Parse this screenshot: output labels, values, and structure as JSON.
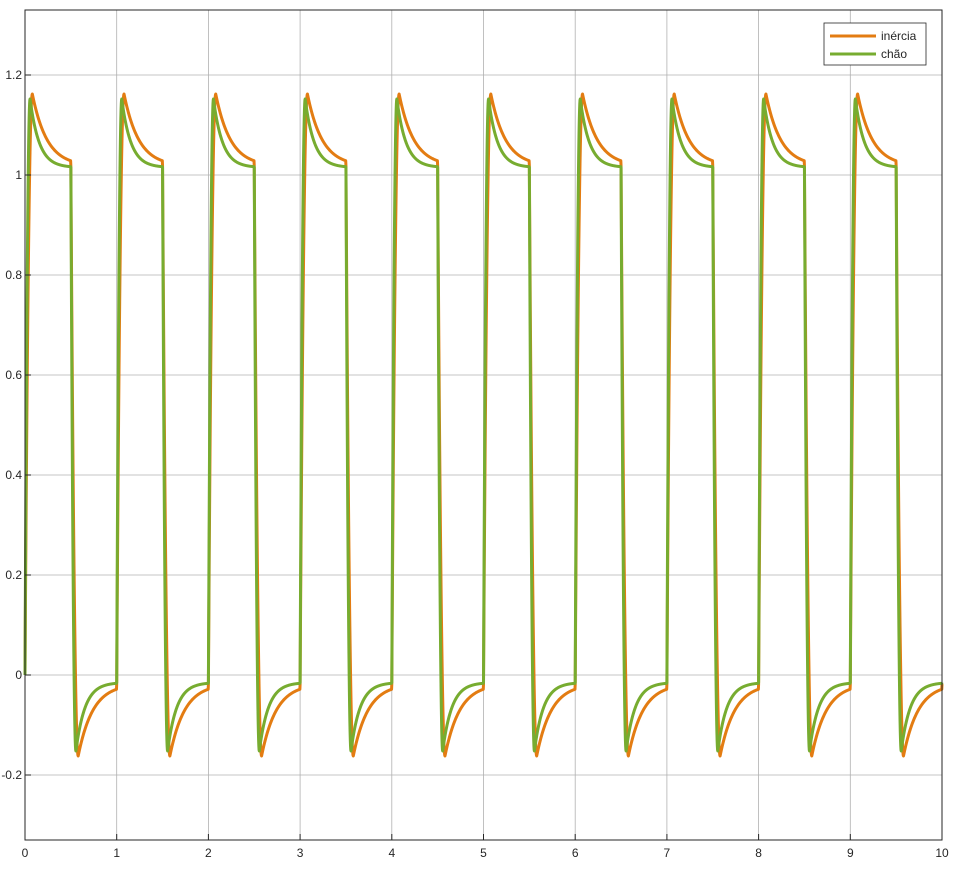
{
  "colors": {
    "background": "#ffffff",
    "axes_box": "#262626",
    "grid": "#b0b0b0",
    "series_inercia": "#e37c12",
    "series_chao": "#77ac30"
  },
  "chart_data": {
    "type": "line",
    "title": "",
    "xlabel": "",
    "ylabel": "",
    "xlim": [
      0,
      10
    ],
    "ylim": [
      -0.33,
      1.33
    ],
    "xticks": [
      "0",
      "1",
      "2",
      "3",
      "4",
      "5",
      "6",
      "7",
      "8",
      "9",
      "10"
    ],
    "yticks": [
      "-0.2",
      "0",
      "0.2",
      "0.4",
      "0.6",
      "0.8",
      "1",
      "1.2"
    ],
    "grid": "on",
    "legend_position": "top-right",
    "signal": {
      "period": 1,
      "duty": 0.5,
      "high_steady": 1.0,
      "low_steady": 0.0
    },
    "series": [
      {
        "name": "inércia",
        "color_key": "series_inercia",
        "peak_high": 1.162,
        "peak_low": -0.162,
        "settle_high": 1.018,
        "settle_low": -0.018,
        "rise_time": 0.08,
        "decay_tau": 0.16
      },
      {
        "name": "chão",
        "color_key": "series_chao",
        "peak_high": 1.152,
        "peak_low": -0.152,
        "settle_high": 1.015,
        "settle_low": -0.015,
        "rise_time": 0.055,
        "decay_tau": 0.1
      }
    ]
  }
}
